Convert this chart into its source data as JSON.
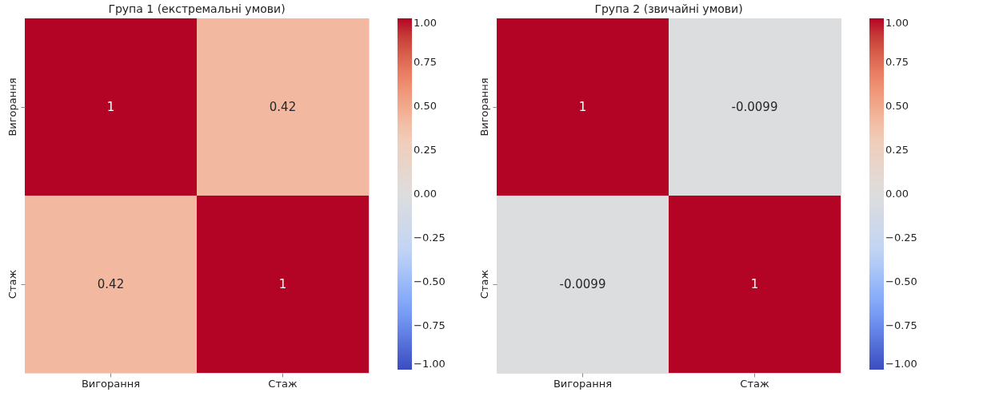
{
  "chart_data": [
    {
      "type": "heatmap",
      "title": "Група 1 (екстремальні умови)",
      "categories": [
        "Вигорання",
        "Стаж"
      ],
      "y_categories": [
        "Вигорання",
        "Стаж"
      ],
      "cells": [
        [
          1,
          0.42
        ],
        [
          0.42,
          1
        ]
      ],
      "data_labels": true,
      "clim": [
        -1,
        1
      ],
      "cticks": [
        {
          "value": -1,
          "label": "−1.00"
        },
        {
          "value": -0.75,
          "label": "−0.75"
        },
        {
          "value": -0.5,
          "label": "−0.50"
        },
        {
          "value": -0.25,
          "label": "−0.25"
        },
        {
          "value": 0,
          "label": "0.00"
        },
        {
          "value": 0.25,
          "label": "0.25"
        },
        {
          "value": 0.5,
          "label": "0.50"
        },
        {
          "value": 0.75,
          "label": "0.75"
        },
        {
          "value": 1,
          "label": "1.00"
        }
      ]
    },
    {
      "type": "heatmap",
      "title": "Група 2 (звичайні умови)",
      "categories": [
        "Вигорання",
        "Стаж"
      ],
      "y_categories": [
        "Вигорання",
        "Стаж"
      ],
      "cells": [
        [
          1,
          -0.0099
        ],
        [
          -0.0099,
          1
        ]
      ],
      "data_labels": true,
      "clim": [
        -1,
        1
      ],
      "cticks": [
        {
          "value": -1,
          "label": "−1.00"
        },
        {
          "value": -0.75,
          "label": "−0.75"
        },
        {
          "value": -0.5,
          "label": "−0.50"
        },
        {
          "value": -0.25,
          "label": "−0.25"
        },
        {
          "value": 0,
          "label": "0.00"
        },
        {
          "value": 0.25,
          "label": "0.25"
        },
        {
          "value": 0.5,
          "label": "0.50"
        },
        {
          "value": 0.75,
          "label": "0.75"
        },
        {
          "value": 1,
          "label": "1.00"
        }
      ]
    }
  ]
}
